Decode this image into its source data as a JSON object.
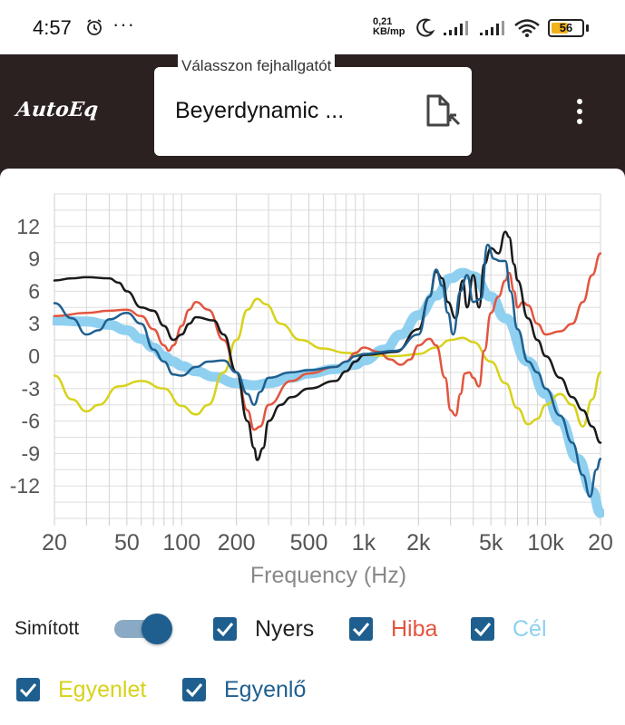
{
  "status_bar": {
    "time": "4:57",
    "dots": "···",
    "speed_value": "0,21",
    "speed_unit": "KB/mp",
    "battery": "56",
    "battery_level": 0.56,
    "icons": [
      "alarm-icon",
      "moon-icon",
      "signal-icon",
      "signal-icon",
      "wifi-icon",
      "battery-icon"
    ]
  },
  "appbar": {
    "logo_text": "AutoEq",
    "select_label": "Válasszon fejhallgatót",
    "select_value": "Beyerdynamic ...",
    "file_icon": "file-import-icon",
    "menu_icon": "more-vertical-icon",
    "bg_color": "#2b2120"
  },
  "controls": {
    "smooth_label": "Simított",
    "smooth_on": true,
    "checkboxes": [
      {
        "label": "Nyers",
        "checked": true,
        "color": "#222222"
      },
      {
        "label": "Hiba",
        "checked": true,
        "color": "#e2553f"
      },
      {
        "label": "Cél",
        "checked": true,
        "color": "#8fd0f0"
      },
      {
        "label": "Egyenlet",
        "checked": true,
        "color": "#d7d21a"
      },
      {
        "label": "Egyenlő",
        "checked": true,
        "color": "#1f5f8f"
      }
    ]
  },
  "chart_data": {
    "type": "line",
    "xlabel": "Frequency (Hz)",
    "ylabel": "",
    "x_scale": "log",
    "xlim": [
      20,
      20000
    ],
    "ylim": [
      -15,
      15
    ],
    "grid": true,
    "legend": "none",
    "y_ticks": [
      "12",
      "9",
      "6",
      "3",
      "0",
      "-3",
      "-6",
      "-9",
      "-12"
    ],
    "y_tick_values": [
      12,
      9,
      6,
      3,
      0,
      -3,
      -6,
      -9,
      -12
    ],
    "x_ticks": [
      "20",
      "50",
      "100",
      "200",
      "500",
      "1k",
      "2k",
      "5k",
      "10k",
      "20"
    ],
    "x_tick_values": [
      20,
      50,
      100,
      200,
      500,
      1000,
      2000,
      5000,
      10000,
      20000
    ],
    "series": [
      {
        "name": "Cél",
        "color": "#8fd0f0",
        "width": 11,
        "points": [
          [
            20,
            3.3
          ],
          [
            30,
            3.2
          ],
          [
            40,
            2.9
          ],
          [
            50,
            2.4
          ],
          [
            60,
            1.6
          ],
          [
            70,
            0.8
          ],
          [
            80,
            0
          ],
          [
            90,
            -0.5
          ],
          [
            100,
            -0.9
          ],
          [
            120,
            -1.4
          ],
          [
            150,
            -1.9
          ],
          [
            200,
            -2.5
          ],
          [
            250,
            -2.7
          ],
          [
            300,
            -2.5
          ],
          [
            400,
            -2.0
          ],
          [
            500,
            -1.6
          ],
          [
            700,
            -1.2
          ],
          [
            900,
            -0.8
          ],
          [
            1000,
            -0.4
          ],
          [
            1300,
            0.6
          ],
          [
            1600,
            2.0
          ],
          [
            2000,
            3.8
          ],
          [
            2500,
            5.6
          ],
          [
            3000,
            7.2
          ],
          [
            3500,
            7.7
          ],
          [
            4000,
            7.4
          ],
          [
            5000,
            5.5
          ],
          [
            6000,
            3.5
          ],
          [
            8000,
            -0.5
          ],
          [
            10000,
            -3.5
          ],
          [
            12000,
            -6.0
          ],
          [
            15000,
            -9.5
          ],
          [
            18000,
            -12.5
          ],
          [
            20000,
            -14.5
          ]
        ]
      },
      {
        "name": "Egyenlet",
        "color": "#d7d21a",
        "width": 2.5,
        "points": [
          [
            20,
            -1.8
          ],
          [
            25,
            -4.0
          ],
          [
            30,
            -5.1
          ],
          [
            35,
            -4.5
          ],
          [
            45,
            -2.8
          ],
          [
            60,
            -2.3
          ],
          [
            80,
            -3.0
          ],
          [
            100,
            -4.6
          ],
          [
            120,
            -5.4
          ],
          [
            140,
            -4.5
          ],
          [
            170,
            -1.5
          ],
          [
            200,
            1.5
          ],
          [
            230,
            4.3
          ],
          [
            260,
            5.3
          ],
          [
            290,
            4.8
          ],
          [
            350,
            3.0
          ],
          [
            450,
            1.5
          ],
          [
            600,
            0.7
          ],
          [
            800,
            0.3
          ],
          [
            1000,
            0.1
          ],
          [
            1500,
            0
          ],
          [
            2000,
            0.2
          ],
          [
            2500,
            0.8
          ],
          [
            3000,
            1.5
          ],
          [
            3500,
            1.7
          ],
          [
            4000,
            1.3
          ],
          [
            5000,
            -0.5
          ],
          [
            6000,
            -2.5
          ],
          [
            7000,
            -4.8
          ],
          [
            8000,
            -6.3
          ],
          [
            9000,
            -5.8
          ],
          [
            10000,
            -4.5
          ],
          [
            12000,
            -3.5
          ],
          [
            14000,
            -4.5
          ],
          [
            16000,
            -6.5
          ],
          [
            18000,
            -4.0
          ],
          [
            20000,
            -1.5
          ]
        ]
      },
      {
        "name": "Hiba",
        "color": "#e2553f",
        "width": 2.5,
        "points": [
          [
            20,
            3.7
          ],
          [
            30,
            4.0
          ],
          [
            40,
            4.2
          ],
          [
            50,
            4.3
          ],
          [
            60,
            3.7
          ],
          [
            70,
            2.5
          ],
          [
            80,
            1.0
          ],
          [
            85,
            0.5
          ],
          [
            90,
            1.0
          ],
          [
            100,
            2.8
          ],
          [
            110,
            4.3
          ],
          [
            120,
            5.0
          ],
          [
            140,
            4.3
          ],
          [
            170,
            1.5
          ],
          [
            200,
            -1.5
          ],
          [
            230,
            -5.0
          ],
          [
            250,
            -6.8
          ],
          [
            270,
            -6.5
          ],
          [
            300,
            -4.5
          ],
          [
            400,
            -2.3
          ],
          [
            500,
            -1.6
          ],
          [
            700,
            -1.0
          ],
          [
            800,
            -0.5
          ],
          [
            900,
            0.3
          ],
          [
            1000,
            0.8
          ],
          [
            1200,
            0.4
          ],
          [
            1400,
            -0.3
          ],
          [
            1600,
            -0.8
          ],
          [
            1800,
            -0.3
          ],
          [
            2000,
            1.0
          ],
          [
            2300,
            1.6
          ],
          [
            2500,
            1.0
          ],
          [
            2800,
            -2.0
          ],
          [
            3000,
            -5.0
          ],
          [
            3200,
            -5.5
          ],
          [
            3400,
            -3.5
          ],
          [
            3600,
            -1.6
          ],
          [
            3800,
            -1.5
          ],
          [
            4000,
            -2.0
          ],
          [
            4300,
            -2.8
          ],
          [
            4600,
            0.5
          ],
          [
            5000,
            4.0
          ],
          [
            5500,
            5.5
          ],
          [
            6000,
            7.0
          ],
          [
            6300,
            7.7
          ],
          [
            6700,
            6.0
          ],
          [
            7000,
            4.5
          ],
          [
            7500,
            5.0
          ],
          [
            8000,
            4.7
          ],
          [
            9000,
            3.0
          ],
          [
            10000,
            2.0
          ],
          [
            12000,
            2.3
          ],
          [
            14000,
            3.0
          ],
          [
            16000,
            5.0
          ],
          [
            18000,
            7.5
          ],
          [
            20000,
            9.5
          ]
        ]
      },
      {
        "name": "Nyers",
        "color": "#1a1a1a",
        "width": 2.5,
        "points": [
          [
            20,
            7.0
          ],
          [
            25,
            7.2
          ],
          [
            30,
            7.3
          ],
          [
            40,
            7.2
          ],
          [
            45,
            6.8
          ],
          [
            50,
            6.0
          ],
          [
            60,
            4.5
          ],
          [
            70,
            4.2
          ],
          [
            80,
            2.8
          ],
          [
            90,
            1.5
          ],
          [
            100,
            2.0
          ],
          [
            110,
            3.0
          ],
          [
            120,
            3.6
          ],
          [
            150,
            3.3
          ],
          [
            170,
            2.0
          ],
          [
            200,
            -1.5
          ],
          [
            230,
            -6.0
          ],
          [
            250,
            -8.5
          ],
          [
            260,
            -9.6
          ],
          [
            280,
            -8.5
          ],
          [
            300,
            -6.0
          ],
          [
            350,
            -4.5
          ],
          [
            400,
            -3.8
          ],
          [
            500,
            -3.0
          ],
          [
            700,
            -2.3
          ],
          [
            800,
            -1.4
          ],
          [
            900,
            -0.5
          ],
          [
            1000,
            0.1
          ],
          [
            1500,
            0.4
          ],
          [
            2000,
            2.5
          ],
          [
            2300,
            5.5
          ],
          [
            2500,
            7.8
          ],
          [
            2700,
            7.2
          ],
          [
            2900,
            5.0
          ],
          [
            3200,
            3.5
          ],
          [
            3500,
            7.0
          ],
          [
            3700,
            4.5
          ],
          [
            4000,
            7.5
          ],
          [
            4300,
            4.5
          ],
          [
            4600,
            8.5
          ],
          [
            5000,
            10.0
          ],
          [
            5500,
            9.5
          ],
          [
            6000,
            11.5
          ],
          [
            6300,
            11.0
          ],
          [
            6700,
            8.5
          ],
          [
            7000,
            7.0
          ],
          [
            8000,
            3.5
          ],
          [
            9000,
            1.5
          ],
          [
            10000,
            0
          ],
          [
            12000,
            -2.0
          ],
          [
            14000,
            -3.8
          ],
          [
            16000,
            -5.0
          ],
          [
            18000,
            -6.5
          ],
          [
            20000,
            -8.0
          ]
        ]
      },
      {
        "name": "Egyenlő",
        "color": "#1f5f8f",
        "width": 2.5,
        "points": [
          [
            20,
            4.9
          ],
          [
            25,
            3.5
          ],
          [
            30,
            2.0
          ],
          [
            35,
            2.4
          ],
          [
            40,
            3.4
          ],
          [
            50,
            4.0
          ],
          [
            60,
            3.0
          ],
          [
            70,
            0.6
          ],
          [
            80,
            -0.5
          ],
          [
            90,
            -1.7
          ],
          [
            100,
            -1.8
          ],
          [
            120,
            -1.0
          ],
          [
            140,
            -0.5
          ],
          [
            170,
            -0.4
          ],
          [
            200,
            -1.5
          ],
          [
            230,
            -3.5
          ],
          [
            250,
            -4.5
          ],
          [
            270,
            -3.3
          ],
          [
            300,
            -2.0
          ],
          [
            400,
            -1.5
          ],
          [
            500,
            -1.3
          ],
          [
            700,
            -1.0
          ],
          [
            800,
            -0.5
          ],
          [
            900,
            0
          ],
          [
            1000,
            0.2
          ],
          [
            1500,
            0.5
          ],
          [
            2000,
            2.0
          ],
          [
            2300,
            5.5
          ],
          [
            2500,
            8.0
          ],
          [
            2700,
            6.5
          ],
          [
            2900,
            4.0
          ],
          [
            3100,
            2.0
          ],
          [
            3400,
            6.0
          ],
          [
            3700,
            7.5
          ],
          [
            4000,
            5.0
          ],
          [
            4400,
            5.3
          ],
          [
            4800,
            10.3
          ],
          [
            5200,
            9.0
          ],
          [
            5600,
            8.8
          ],
          [
            6000,
            8.8
          ],
          [
            6400,
            6.0
          ],
          [
            7000,
            2.5
          ],
          [
            8000,
            -0.5
          ],
          [
            9000,
            -1.5
          ],
          [
            10000,
            -3.0
          ],
          [
            12000,
            -5.5
          ],
          [
            14000,
            -8.0
          ],
          [
            16000,
            -11.0
          ],
          [
            17500,
            -13.0
          ],
          [
            19000,
            -10.5
          ],
          [
            20000,
            -9.5
          ]
        ]
      }
    ]
  }
}
